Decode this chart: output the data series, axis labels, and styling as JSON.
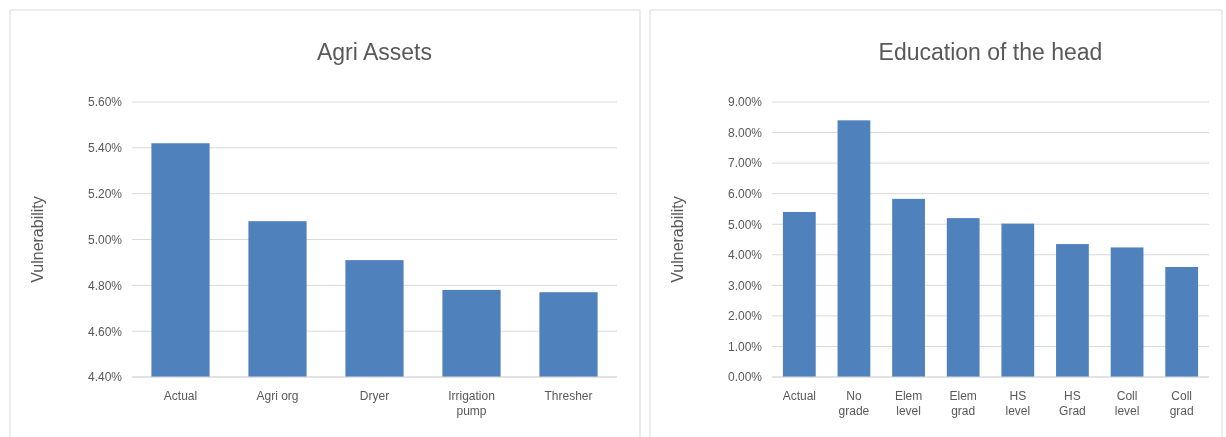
{
  "chart_data": [
    {
      "type": "bar",
      "title": "Agri Assets",
      "ylabel": "Vulnerability",
      "categories": [
        "Actual",
        "Agri org",
        "Dryer",
        "Irrigation pump",
        "Thresher"
      ],
      "values": [
        5.42,
        5.08,
        4.91,
        4.78,
        4.77
      ],
      "color": "#4f81bd",
      "ylim": [
        4.4,
        5.6
      ],
      "yticks": [
        {
          "value": 4.4,
          "label": "4.40%"
        },
        {
          "value": 4.6,
          "label": "4.60%"
        },
        {
          "value": 4.8,
          "label": "4.80%"
        },
        {
          "value": 5.0,
          "label": "5.00%"
        },
        {
          "value": 5.2,
          "label": "5.20%"
        },
        {
          "value": 5.4,
          "label": "5.40%"
        },
        {
          "value": 5.6,
          "label": "5.60%"
        }
      ],
      "grid": "y"
    },
    {
      "type": "bar",
      "title": "Education of the head",
      "ylabel": "Vulnerability",
      "categories": [
        "Actual",
        "No grade",
        "Elem level",
        "Elem grad",
        "HS level",
        "HS Grad",
        "Coll level",
        "Coll grad"
      ],
      "values": [
        5.4,
        8.4,
        5.83,
        5.2,
        5.02,
        4.35,
        4.24,
        3.6
      ],
      "color": "#4f81bd",
      "ylim": [
        0,
        9
      ],
      "yticks": [
        {
          "value": 0,
          "label": "0.00%"
        },
        {
          "value": 1,
          "label": "1.00%"
        },
        {
          "value": 2,
          "label": "2.00%"
        },
        {
          "value": 3,
          "label": "3.00%"
        },
        {
          "value": 4,
          "label": "4.00%"
        },
        {
          "value": 5,
          "label": "5.00%"
        },
        {
          "value": 6,
          "label": "6.00%"
        },
        {
          "value": 7,
          "label": "7.00%"
        },
        {
          "value": 8,
          "label": "8.00%"
        },
        {
          "value": 9,
          "label": "9.00%"
        }
      ],
      "grid": "y"
    }
  ]
}
